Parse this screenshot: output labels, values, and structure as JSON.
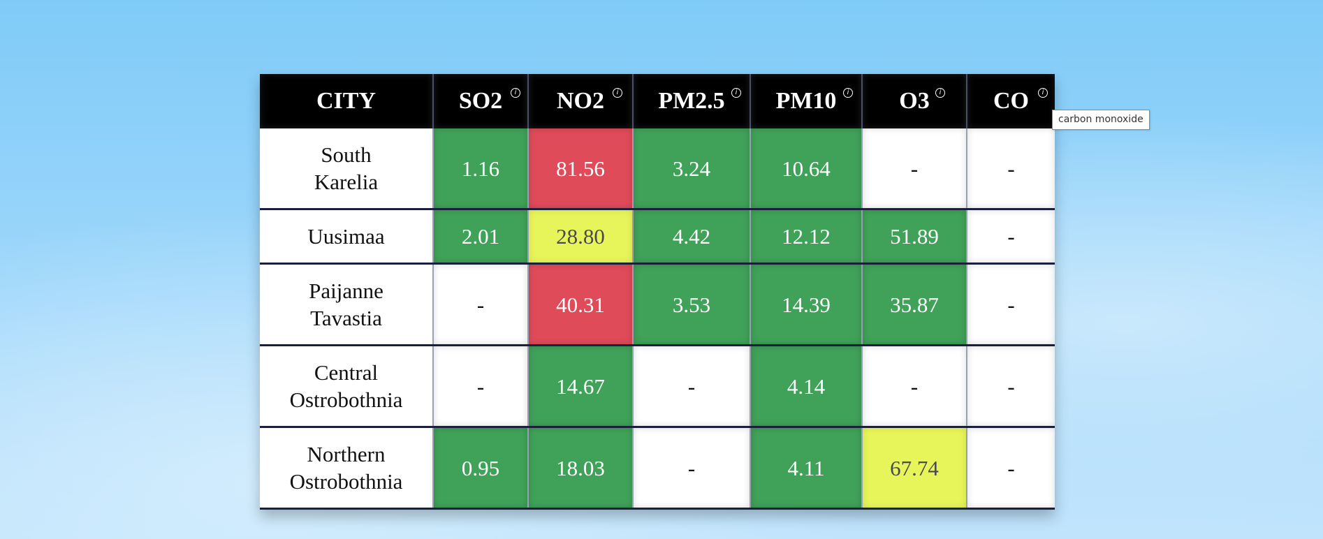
{
  "table": {
    "headers": [
      {
        "label": "CITY",
        "info": false
      },
      {
        "label": "SO2",
        "info": true
      },
      {
        "label": "NO2",
        "info": true
      },
      {
        "label": "PM2.5",
        "info": true
      },
      {
        "label": "PM10",
        "info": true
      },
      {
        "label": "O3",
        "info": true
      },
      {
        "label": "CO",
        "info": true
      }
    ],
    "info_icon_glyph": "i",
    "rows": [
      {
        "city": "South Karelia",
        "values": [
          "1.16",
          "81.56",
          "3.24",
          "10.64",
          "-",
          "-"
        ],
        "levels": [
          "good",
          "bad",
          "good",
          "good",
          "none",
          "none"
        ]
      },
      {
        "city": "Uusimaa",
        "values": [
          "2.01",
          "28.80",
          "4.42",
          "12.12",
          "51.89",
          "-"
        ],
        "levels": [
          "good",
          "moderate",
          "good",
          "good",
          "good",
          "none"
        ]
      },
      {
        "city": "Paijanne Tavastia",
        "values": [
          "-",
          "40.31",
          "3.53",
          "14.39",
          "35.87",
          "-"
        ],
        "levels": [
          "none",
          "bad",
          "good",
          "good",
          "good",
          "none"
        ]
      },
      {
        "city": "Central Ostrobothnia",
        "values": [
          "-",
          "14.67",
          "-",
          "4.14",
          "-",
          "-"
        ],
        "levels": [
          "none",
          "good",
          "none",
          "good",
          "none",
          "none"
        ]
      },
      {
        "city": "Northern Ostrobothnia",
        "values": [
          "0.95",
          "18.03",
          "-",
          "4.11",
          "67.74",
          "-"
        ],
        "levels": [
          "good",
          "good",
          "none",
          "good",
          "moderate",
          "none"
        ]
      }
    ]
  },
  "tooltip": {
    "text": "carbon monoxide"
  },
  "colors": {
    "good": "#40a259",
    "moderate": "#e7f55a",
    "bad": "#e04b5a",
    "none": "#ffffff",
    "header": "#000000"
  }
}
